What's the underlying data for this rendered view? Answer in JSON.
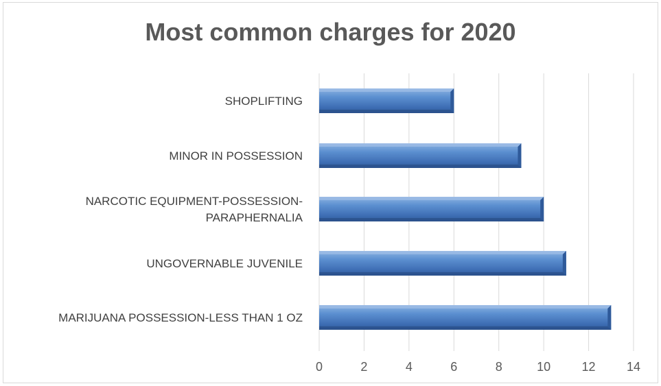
{
  "chart_data": {
    "type": "bar",
    "orientation": "horizontal",
    "title": "Most common charges for 2020",
    "categories": [
      [
        "SHOPLIFTING"
      ],
      [
        "MINOR IN POSSESSION"
      ],
      [
        "NARCOTIC EQUIPMENT-POSSESSION-",
        "PARAPHERNALIA"
      ],
      [
        "UNGOVERNABLE JUVENILE"
      ],
      [
        "MARIJUANA POSSESSION-LESS THAN 1 OZ"
      ]
    ],
    "values": [
      6,
      9,
      10,
      11,
      13
    ],
    "xlim": [
      0,
      14
    ],
    "xticks": [
      "0",
      "2",
      "4",
      "6",
      "8",
      "10",
      "12",
      "14"
    ],
    "grid": true,
    "legend": "none",
    "bar_color": "#4f81bd"
  }
}
